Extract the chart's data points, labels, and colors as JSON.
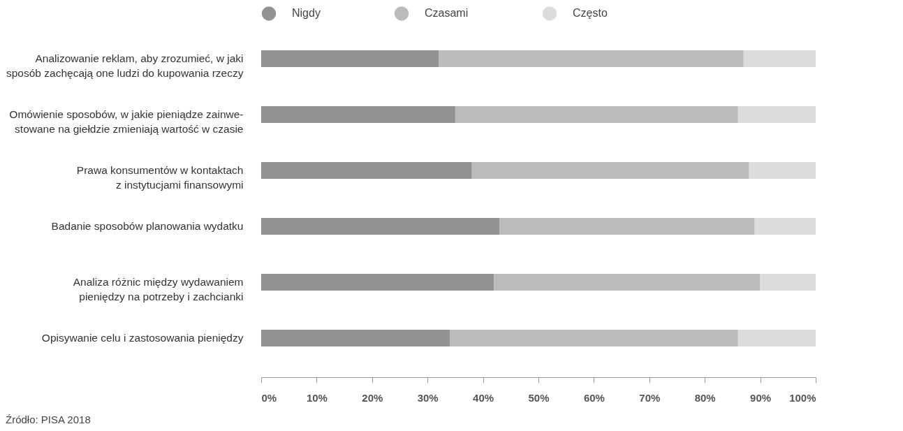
{
  "chart_data": {
    "type": "bar",
    "orientation": "horizontal",
    "stacked": true,
    "categories": [
      "Analizowanie reklam, aby zrozumieć, w jaki\nsposób zachęcają one ludzi do kupowania rzeczy",
      "Omówienie sposobów, w jakie pieniądze zainwe-\nstowane na giełdzie zmieniają wartość w czasie",
      "Prawa konsumentów w kontaktach\nz instytucjami finansowymi",
      "Badanie sposobów planowania wydatku",
      "Analiza różnic między wydawaniem\npieniędzy na potrzeby i zachcianki",
      "Opisywanie celu i zastosowania pieniędzy"
    ],
    "series": [
      {
        "name": "Nigdy",
        "color": "#939292",
        "values": [
          32,
          35,
          38,
          43,
          42,
          34
        ]
      },
      {
        "name": "Czasami",
        "color": "#bbbabc",
        "values": [
          55,
          51,
          50,
          46,
          48,
          52
        ]
      },
      {
        "name": "Często",
        "color": "#dcdcdd",
        "values": [
          13,
          14,
          12,
          11,
          10,
          14
        ]
      }
    ],
    "xlim": [
      0,
      100
    ],
    "xticks": [
      {
        "value": 0,
        "label": "0%"
      },
      {
        "value": 10,
        "label": "10%"
      },
      {
        "value": 20,
        "label": "20%"
      },
      {
        "value": 30,
        "label": "30%"
      },
      {
        "value": 40,
        "label": "40%"
      },
      {
        "value": 50,
        "label": "50%"
      },
      {
        "value": 60,
        "label": "60%"
      },
      {
        "value": 70,
        "label": "70%"
      },
      {
        "value": 80,
        "label": "80%"
      },
      {
        "value": 90,
        "label": "90%"
      },
      {
        "value": 100,
        "label": "100%"
      }
    ],
    "grid": false,
    "legend": "top",
    "annotations": [
      "Źródło: PISA 2018"
    ]
  }
}
